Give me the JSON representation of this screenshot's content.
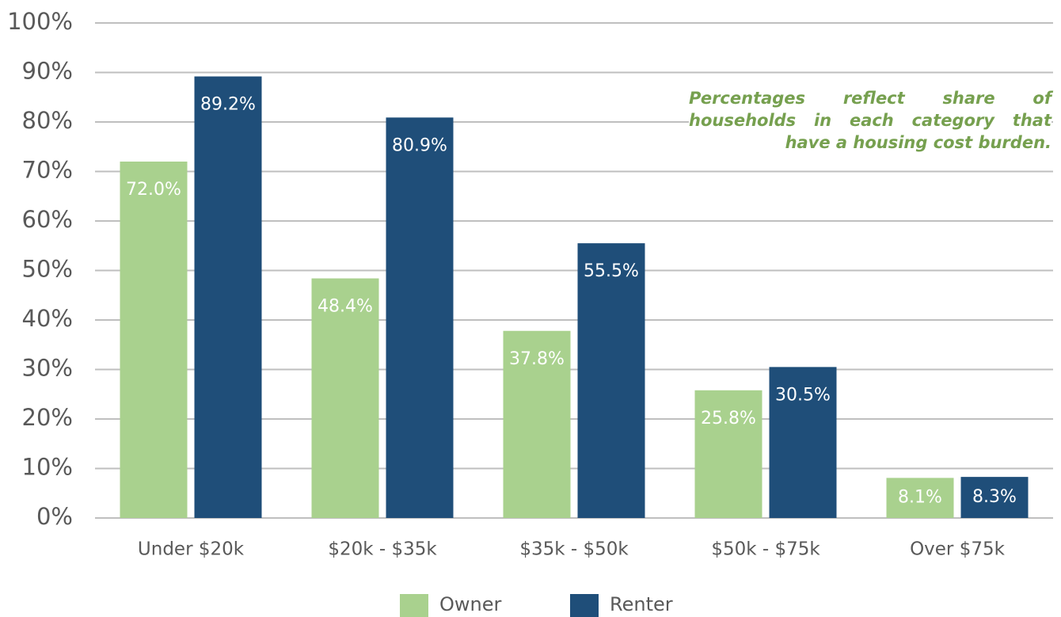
{
  "chart_data": {
    "type": "bar",
    "categories": [
      "Under $20k",
      "$20k - $35k",
      "$35k - $50k",
      "$50k - $75k",
      "Over $75k"
    ],
    "series": [
      {
        "name": "Owner",
        "color": "#a9d18e",
        "values": [
          72.0,
          48.4,
          37.8,
          25.8,
          8.1
        ],
        "value_labels": [
          "72.0%",
          "48.4%",
          "37.8%",
          "25.8%",
          "8.1%"
        ]
      },
      {
        "name": "Renter",
        "color": "#1f4e79",
        "values": [
          89.2,
          80.9,
          55.5,
          30.5,
          8.3
        ],
        "value_labels": [
          "89.2%",
          "80.9%",
          "55.5%",
          "30.5%",
          "8.3%"
        ]
      }
    ],
    "ylim": [
      0,
      100
    ],
    "yticks": [
      {
        "value": 0,
        "label": "0%"
      },
      {
        "value": 10,
        "label": "10%"
      },
      {
        "value": 20,
        "label": "20%"
      },
      {
        "value": 30,
        "label": "30%"
      },
      {
        "value": 40,
        "label": "40%"
      },
      {
        "value": 50,
        "label": "50%"
      },
      {
        "value": 60,
        "label": "60%"
      },
      {
        "value": 70,
        "label": "70%"
      },
      {
        "value": 80,
        "label": "80%"
      },
      {
        "value": 90,
        "label": "90%"
      },
      {
        "value": 100,
        "label": "100%"
      }
    ],
    "grid": true,
    "legend": "bottom",
    "annotation": "Percentages reflect share of households in each category that have a housing cost burden."
  }
}
